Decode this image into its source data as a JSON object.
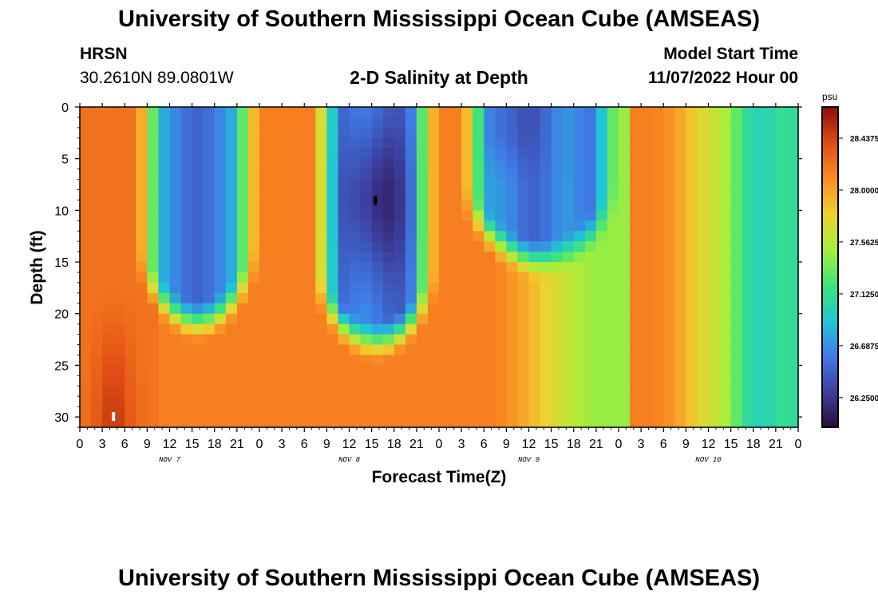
{
  "header": {
    "title": "University of Southern Mississippi Ocean Cube (AMSEAS)",
    "station": "HRSN",
    "location": "30.2610N  89.0801W",
    "subtitle": "2-D Salinity at Depth",
    "model_start_label": "Model Start Time",
    "model_start_value": "11/07/2022 Hour 00"
  },
  "footer": {
    "title": "University of Southern Mississippi Ocean Cube (AMSEAS)"
  },
  "chart_data": {
    "type": "heatmap",
    "title": "2-D Salinity at Depth",
    "xlabel": "Forecast Time(Z)",
    "ylabel": "Depth (ft)",
    "x_range_hours": [
      0,
      96
    ],
    "y_range_ft": [
      0,
      31
    ],
    "x_tick_labels": [
      "0",
      "3",
      "6",
      "9",
      "12",
      "15",
      "18",
      "21",
      "0",
      "3",
      "6",
      "9",
      "12",
      "15",
      "18",
      "21",
      "0",
      "3",
      "6",
      "9",
      "12",
      "15",
      "18",
      "21",
      "0",
      "3",
      "6",
      "9",
      "12",
      "15",
      "18",
      "21",
      "0"
    ],
    "y_ticks": [
      0,
      5,
      10,
      15,
      20,
      25,
      30
    ],
    "y_tick_labels": [
      "0",
      "5",
      "10",
      "15",
      "20",
      "25",
      "30"
    ],
    "day_labels": [
      {
        "label": "NOV 7",
        "hour": 12
      },
      {
        "label": "NOV 8",
        "hour": 36
      },
      {
        "label": "NOV 9",
        "hour": 60
      },
      {
        "label": "NOV 10",
        "hour": 84
      }
    ],
    "colorbar": {
      "unit": "psu",
      "range": [
        26.0,
        28.7
      ],
      "tick_values": [
        28.4375,
        28.0,
        27.5625,
        27.125,
        26.6875,
        26.25
      ],
      "tick_labels": [
        "28.4375",
        "28.0000",
        "27.5625",
        "27.1250",
        "26.6875",
        "26.2500"
      ],
      "colors": [
        "#2a0a3c",
        "#3d3f9e",
        "#3f7be6",
        "#1fc7d4",
        "#3ee57a",
        "#a7ee3c",
        "#f0d12f",
        "#fb8c24",
        "#e04b14",
        "#8a0e04"
      ]
    },
    "freshwater_columns": [
      {
        "start_hour": 9.5,
        "end_hour": 22,
        "max_depth_ft": 21
      },
      {
        "start_hour": 33,
        "end_hour": 46,
        "max_depth_ft": 23
      },
      {
        "start_hour": 53,
        "end_hour": 70,
        "max_depth_ft": 15
      }
    ],
    "min_salinity_location": {
      "hour": 39.5,
      "depth_ft": 9
    },
    "max_salinity_location": {
      "hour": 4.5,
      "depth_ft": 30
    }
  }
}
